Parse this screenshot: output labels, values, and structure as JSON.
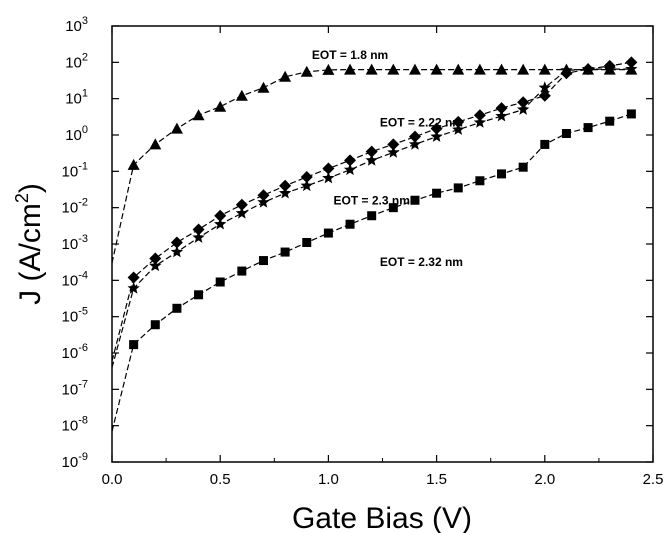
{
  "chart_data": {
    "type": "line",
    "title": "",
    "xlabel": "Gate Bias (V)",
    "ylabel_main": "J (A/cm",
    "ylabel_sup": "2",
    "ylabel_close": ")",
    "xlim": [
      0.0,
      2.5
    ],
    "ylim_log10": [
      -9,
      3
    ],
    "y_scale": "log",
    "grid": false,
    "legend": "none",
    "x_ticks": [
      0.0,
      0.5,
      1.0,
      1.5,
      2.0,
      2.5
    ],
    "x_tick_labels": [
      "0.0",
      "0.5",
      "1.0",
      "1.5",
      "2.0",
      "2.5"
    ],
    "y_tick_exponents": [
      -9,
      -8,
      -7,
      -6,
      -5,
      -4,
      -3,
      -2,
      -1,
      0,
      1,
      2,
      3
    ],
    "y_tick_base": "10",
    "line_color": "#000000",
    "series": [
      {
        "marker": "triangle",
        "x": [
          0.0,
          0.1,
          0.2,
          0.3,
          0.4,
          0.5,
          0.6,
          0.7,
          0.8,
          0.9,
          1.0,
          1.1,
          1.2,
          1.3,
          1.4,
          1.5,
          1.6,
          1.7,
          1.8,
          1.9,
          2.0,
          2.1,
          2.2,
          2.3,
          2.4
        ],
        "y": [
          0.0003,
          0.15,
          0.55,
          1.5,
          3.5,
          6,
          12,
          20,
          40,
          55,
          62,
          63,
          63,
          63,
          63,
          63,
          63,
          63,
          63,
          63,
          63,
          63,
          63,
          63,
          63
        ]
      },
      {
        "marker": "diamond",
        "x": [
          0.0,
          0.1,
          0.2,
          0.3,
          0.4,
          0.5,
          0.6,
          0.7,
          0.8,
          0.9,
          1.0,
          1.1,
          1.2,
          1.3,
          1.4,
          1.5,
          1.6,
          1.7,
          1.8,
          1.9,
          2.0,
          2.1,
          2.2,
          2.3,
          2.4
        ],
        "y": [
          6e-07,
          0.00012,
          0.0004,
          0.0011,
          0.0025,
          0.006,
          0.012,
          0.022,
          0.04,
          0.07,
          0.12,
          0.2,
          0.35,
          0.55,
          0.9,
          1.5,
          2.3,
          3.5,
          5.5,
          8,
          12,
          50,
          65,
          80,
          100
        ]
      },
      {
        "marker": "star",
        "x": [
          0.0,
          0.1,
          0.2,
          0.3,
          0.4,
          0.5,
          0.6,
          0.7,
          0.8,
          0.9,
          1.0,
          1.1,
          1.2,
          1.3,
          1.4,
          1.5,
          1.6,
          1.7,
          1.8,
          1.9,
          2.0,
          2.1,
          2.2,
          2.3,
          2.4
        ],
        "y": [
          4e-07,
          6e-05,
          0.00025,
          0.0006,
          0.0015,
          0.0035,
          0.007,
          0.014,
          0.025,
          0.04,
          0.065,
          0.11,
          0.2,
          0.33,
          0.55,
          0.9,
          1.4,
          2.2,
          3.3,
          5,
          20,
          60,
          65,
          65,
          65
        ]
      },
      {
        "marker": "square",
        "x": [
          0.0,
          0.1,
          0.2,
          0.3,
          0.4,
          0.5,
          0.6,
          0.7,
          0.8,
          0.9,
          1.0,
          1.1,
          1.2,
          1.3,
          1.4,
          1.5,
          1.6,
          1.7,
          1.8,
          1.9,
          2.0,
          2.1,
          2.2,
          2.3,
          2.4
        ],
        "y": [
          7e-09,
          1.7e-06,
          6e-06,
          1.7e-05,
          4e-05,
          9e-05,
          0.00018,
          0.00035,
          0.0006,
          0.0011,
          0.002,
          0.0035,
          0.006,
          0.01,
          0.016,
          0.025,
          0.035,
          0.055,
          0.085,
          0.13,
          0.55,
          1.1,
          1.6,
          2.4,
          3.8
        ]
      }
    ],
    "annotations": [
      {
        "text": "EOT = 1.8 nm",
        "x": 1.1,
        "y_log10": 2.2
      },
      {
        "text": "EOT = 2.22 nm",
        "x": 1.43,
        "y_log10": 0.35
      },
      {
        "text": "EOT = 2.3 nm",
        "x": 1.2,
        "y_log10": -1.8
      },
      {
        "text": "EOT = 2.32 nm",
        "x": 1.43,
        "y_log10": -3.5
      }
    ]
  }
}
